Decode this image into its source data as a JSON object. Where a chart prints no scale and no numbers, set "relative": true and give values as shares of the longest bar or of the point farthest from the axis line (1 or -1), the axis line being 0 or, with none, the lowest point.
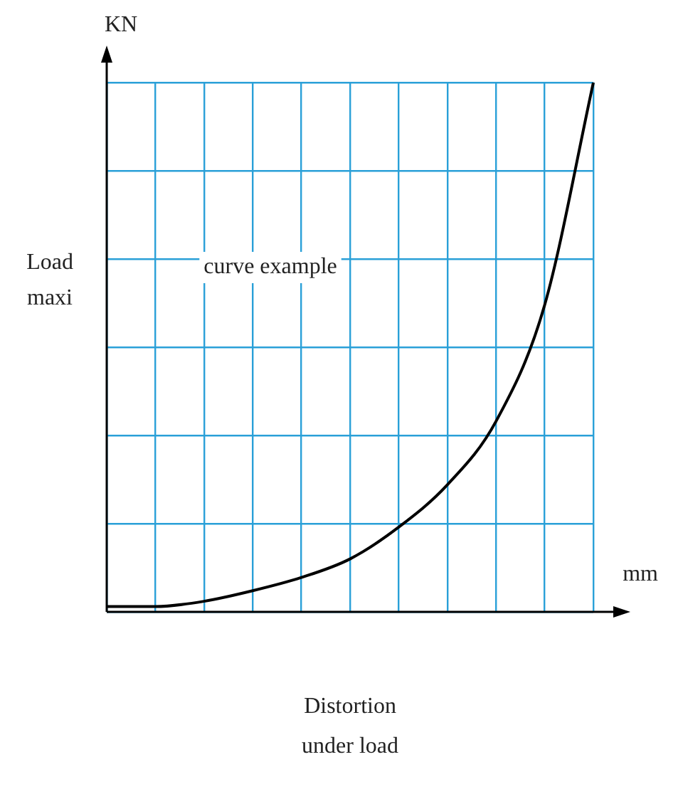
{
  "chart_data": {
    "type": "line",
    "relative": true,
    "xlabel": "Distortion\nunder load",
    "ylabel": "Load\nmaxi",
    "annotations": [
      "KN",
      "mm",
      "curve example"
    ],
    "categories": [
      null,
      null,
      null,
      null,
      null,
      null,
      null,
      null,
      null,
      null,
      null
    ],
    "series": [
      {
        "color": "#000000",
        "values": [
          0.01,
          0.01,
          0.02,
          0.04,
          0.065,
          0.1,
          0.16,
          0.24,
          0.36,
          0.58,
          1
        ]
      }
    ],
    "grid": true,
    "legend": false,
    "marker": "none",
    "line_style": "solid"
  }
}
